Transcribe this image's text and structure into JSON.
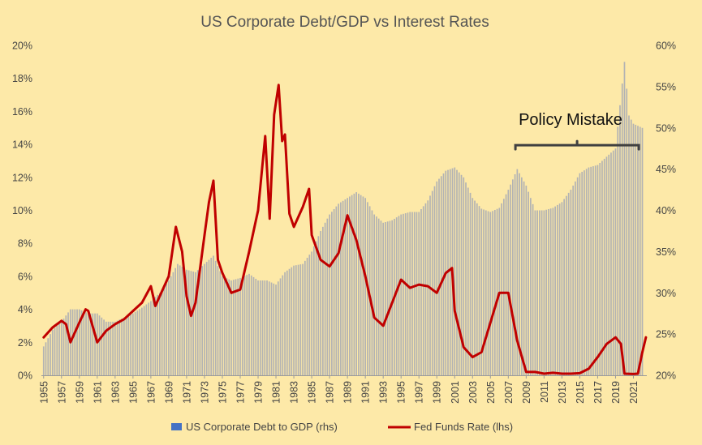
{
  "chart_data": {
    "type": "bar",
    "title": "US Corporate Debt/GDP vs Interest Rates",
    "x_tick_labels": [
      "1955",
      "1957",
      "1959",
      "1961",
      "1963",
      "1965",
      "1967",
      "1969",
      "1971",
      "1973",
      "1975",
      "1977",
      "1979",
      "1981",
      "1983",
      "1985",
      "1987",
      "1989",
      "1991",
      "1993",
      "1995",
      "1997",
      "1999",
      "2001",
      "2003",
      "2005",
      "2007",
      "2009",
      "2011",
      "2013",
      "2015",
      "2017",
      "2019",
      "2021"
    ],
    "y_left_tick_labels": [
      "0%",
      "2%",
      "4%",
      "6%",
      "8%",
      "10%",
      "12%",
      "14%",
      "16%",
      "18%",
      "20%"
    ],
    "y_right_tick_labels": [
      "20%",
      "25%",
      "30%",
      "35%",
      "40%",
      "45%",
      "50%",
      "55%",
      "60%"
    ],
    "ylim_left": [
      0,
      20
    ],
    "ylim_right": [
      20,
      60
    ],
    "xlim": [
      1954.75,
      2022.5
    ],
    "grid": false,
    "legend_position": "bottom",
    "series": [
      {
        "name": "US Corporate Debt to GDP (rhs)",
        "type": "bar",
        "axis": "right",
        "color": "#4472C4",
        "display_color": "#B3B3B3",
        "points": [
          [
            1955,
            23.5
          ],
          [
            1956,
            25.5
          ],
          [
            1957,
            26.5
          ],
          [
            1958,
            28
          ],
          [
            1959,
            28
          ],
          [
            1960,
            27.5
          ],
          [
            1961,
            27.5
          ],
          [
            1962,
            26.5
          ],
          [
            1963,
            26.5
          ],
          [
            1964,
            27
          ],
          [
            1965,
            27.5
          ],
          [
            1966,
            28.2
          ],
          [
            1967,
            29
          ],
          [
            1968,
            30
          ],
          [
            1969,
            31.5
          ],
          [
            1970,
            33.5
          ],
          [
            1971,
            32.8
          ],
          [
            1972,
            32.5
          ],
          [
            1973,
            33.5
          ],
          [
            1974,
            34.5
          ],
          [
            1975,
            32
          ],
          [
            1976,
            31.5
          ],
          [
            1977,
            31.8
          ],
          [
            1978,
            32.3
          ],
          [
            1979,
            31.5
          ],
          [
            1980,
            31.5
          ],
          [
            1981,
            31
          ],
          [
            1982,
            32.5
          ],
          [
            1983,
            33.3
          ],
          [
            1984,
            33.5
          ],
          [
            1985,
            35
          ],
          [
            1986,
            37.5
          ],
          [
            1987,
            39.5
          ],
          [
            1988,
            40.8
          ],
          [
            1989,
            41.5
          ],
          [
            1990,
            42.2
          ],
          [
            1991,
            41.5
          ],
          [
            1992,
            39.5
          ],
          [
            1993,
            38.5
          ],
          [
            1994,
            38.8
          ],
          [
            1995,
            39.5
          ],
          [
            1996,
            39.8
          ],
          [
            1997,
            39.8
          ],
          [
            1998,
            41.2
          ],
          [
            1999,
            43.5
          ],
          [
            2000,
            44.8
          ],
          [
            2001,
            45.2
          ],
          [
            2002,
            44
          ],
          [
            2003,
            41.5
          ],
          [
            2004,
            40.2
          ],
          [
            2005,
            39.8
          ],
          [
            2006,
            40.3
          ],
          [
            2007,
            42.5
          ],
          [
            2008,
            45
          ],
          [
            2009,
            43
          ],
          [
            2010,
            40
          ],
          [
            2011,
            40
          ],
          [
            2012,
            40.3
          ],
          [
            2013,
            41
          ],
          [
            2014,
            42.5
          ],
          [
            2015,
            44.5
          ],
          [
            2016,
            45.2
          ],
          [
            2017,
            45.5
          ],
          [
            2018,
            46.5
          ],
          [
            2019,
            47.5
          ],
          [
            2020,
            58
          ],
          [
            2020.5,
            51.5
          ],
          [
            2021,
            50.5
          ],
          [
            2022,
            50
          ]
        ]
      },
      {
        "name": "Fed Funds Rate (lhs)",
        "type": "line",
        "axis": "left",
        "color": "#C00000",
        "points": [
          [
            1955,
            2.3
          ],
          [
            1956,
            2.9
          ],
          [
            1957,
            3.3
          ],
          [
            1957.5,
            3.1
          ],
          [
            1958,
            2.0
          ],
          [
            1959,
            3.2
          ],
          [
            1959.7,
            4.0
          ],
          [
            1960,
            3.9
          ],
          [
            1961,
            2.0
          ],
          [
            1962,
            2.7
          ],
          [
            1963,
            3.1
          ],
          [
            1964,
            3.4
          ],
          [
            1965,
            3.9
          ],
          [
            1966,
            4.4
          ],
          [
            1967,
            5.4
          ],
          [
            1967.5,
            4.2
          ],
          [
            1968,
            4.8
          ],
          [
            1969,
            6.0
          ],
          [
            1969.8,
            9.0
          ],
          [
            1970.5,
            7.5
          ],
          [
            1971,
            4.8
          ],
          [
            1971.5,
            3.6
          ],
          [
            1972,
            4.4
          ],
          [
            1973,
            8.5
          ],
          [
            1973.5,
            10.5
          ],
          [
            1974,
            11.8
          ],
          [
            1974.5,
            7.0
          ],
          [
            1975,
            6.2
          ],
          [
            1976,
            5.0
          ],
          [
            1977,
            5.2
          ],
          [
            1978,
            7.5
          ],
          [
            1979,
            10.0
          ],
          [
            1979.8,
            14.5
          ],
          [
            1980.3,
            9.5
          ],
          [
            1980.8,
            15.8
          ],
          [
            1981.3,
            17.6
          ],
          [
            1981.7,
            14.2
          ],
          [
            1982,
            14.6
          ],
          [
            1982.5,
            9.8
          ],
          [
            1983,
            9.0
          ],
          [
            1984,
            10.2
          ],
          [
            1984.7,
            11.3
          ],
          [
            1985,
            8.5
          ],
          [
            1986,
            7.0
          ],
          [
            1987,
            6.6
          ],
          [
            1988,
            7.4
          ],
          [
            1989,
            9.7
          ],
          [
            1990,
            8.2
          ],
          [
            1991,
            6.0
          ],
          [
            1992,
            3.5
          ],
          [
            1993,
            3.0
          ],
          [
            1994,
            4.4
          ],
          [
            1995,
            5.8
          ],
          [
            1996,
            5.3
          ],
          [
            1997,
            5.5
          ],
          [
            1998,
            5.4
          ],
          [
            1999,
            5.0
          ],
          [
            2000,
            6.2
          ],
          [
            2000.7,
            6.5
          ],
          [
            2001,
            3.9
          ],
          [
            2002,
            1.7
          ],
          [
            2003,
            1.1
          ],
          [
            2004,
            1.4
          ],
          [
            2005,
            3.2
          ],
          [
            2006,
            5.0
          ],
          [
            2007,
            5.0
          ],
          [
            2008,
            2.1
          ],
          [
            2009,
            0.2
          ],
          [
            2010,
            0.2
          ],
          [
            2011,
            0.1
          ],
          [
            2012,
            0.15
          ],
          [
            2013,
            0.1
          ],
          [
            2014,
            0.1
          ],
          [
            2015,
            0.13
          ],
          [
            2016,
            0.4
          ],
          [
            2017,
            1.1
          ],
          [
            2018,
            1.9
          ],
          [
            2019,
            2.3
          ],
          [
            2019.6,
            1.9
          ],
          [
            2020,
            0.1
          ],
          [
            2021,
            0.08
          ],
          [
            2021.5,
            0.1
          ],
          [
            2022,
            1.4
          ],
          [
            2022.4,
            2.3
          ]
        ]
      }
    ],
    "annotations": [
      {
        "text": "Policy Mistake",
        "x_start": 2007.8,
        "x_end": 2021.6,
        "y_left": 14
      }
    ]
  }
}
